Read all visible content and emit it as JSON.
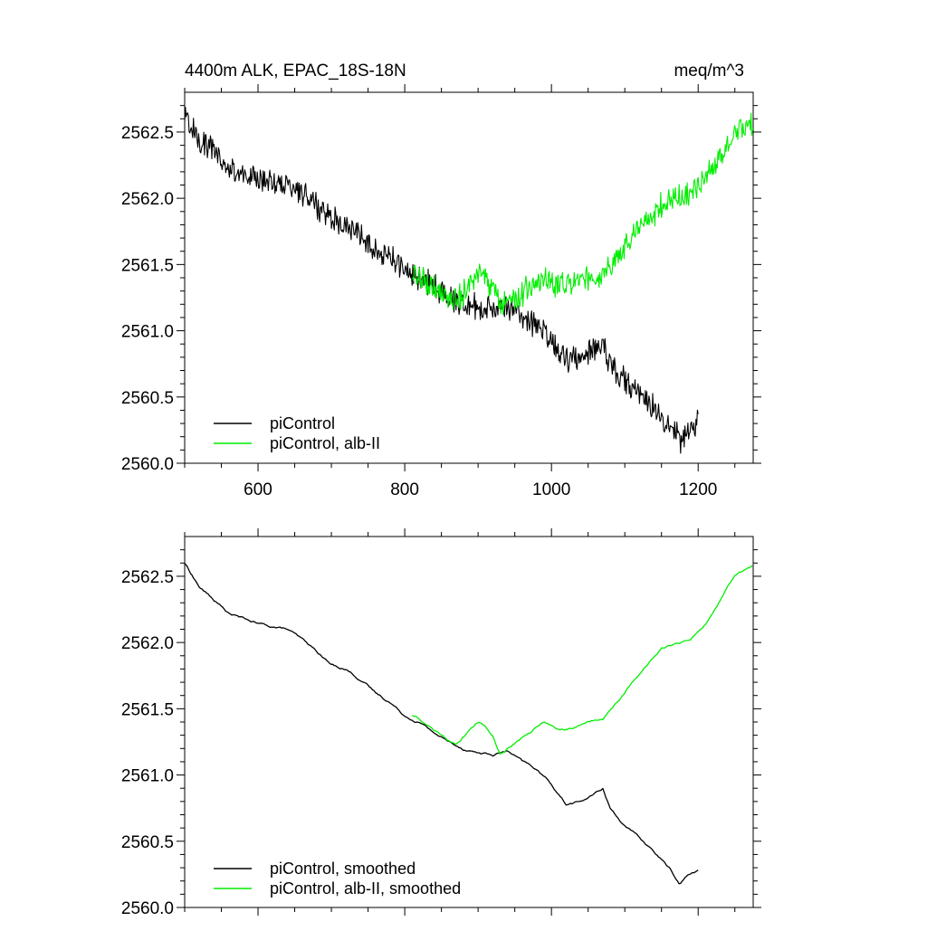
{
  "figure": {
    "title_left": "4400m ALK, EPAC_18S-18N",
    "title_right": "meq/m^3"
  },
  "chart_data": [
    {
      "type": "line",
      "panel": "top",
      "title": "4400m ALK, EPAC_18S-18N",
      "units": "meq/m^3",
      "xlim": [
        500,
        1275
      ],
      "ylim": [
        2560.0,
        2562.8
      ],
      "xticks": [
        600,
        800,
        1000,
        1200
      ],
      "xtick_labels": [
        "600",
        "800",
        "1000",
        "1200"
      ],
      "yticks": [
        2560.0,
        2560.5,
        2561.0,
        2561.5,
        2562.0,
        2562.5
      ],
      "ytick_labels": [
        "2560.0",
        "2560.5",
        "2561.0",
        "2561.5",
        "2562.0",
        "2562.5"
      ],
      "legend_position": "bottom-left",
      "series": [
        {
          "name": "piControl",
          "color": "#000000",
          "noisy": true,
          "x": [
            500,
            520,
            540,
            560,
            580,
            600,
            620,
            640,
            660,
            680,
            700,
            720,
            740,
            760,
            780,
            800,
            820,
            840,
            860,
            880,
            900,
            920,
            940,
            960,
            980,
            1000,
            1020,
            1040,
            1060,
            1070,
            1080,
            1100,
            1120,
            1140,
            1160,
            1175,
            1185,
            1200
          ],
          "values": [
            2562.62,
            2562.45,
            2562.35,
            2562.22,
            2562.18,
            2562.15,
            2562.12,
            2562.1,
            2562.05,
            2561.95,
            2561.85,
            2561.8,
            2561.72,
            2561.62,
            2561.55,
            2561.45,
            2561.4,
            2561.33,
            2561.25,
            2561.2,
            2561.18,
            2561.15,
            2561.2,
            2561.1,
            2561.05,
            2560.92,
            2560.78,
            2560.82,
            2560.88,
            2560.9,
            2560.75,
            2560.62,
            2560.52,
            2560.42,
            2560.3,
            2560.18,
            2560.25,
            2560.3
          ]
        },
        {
          "name": "piControl, alb-II",
          "color": "#00ee00",
          "noisy": true,
          "x": [
            810,
            830,
            850,
            870,
            890,
            900,
            910,
            920,
            930,
            950,
            970,
            990,
            1010,
            1030,
            1050,
            1070,
            1090,
            1110,
            1130,
            1150,
            1170,
            1190,
            1210,
            1230,
            1250,
            1275
          ],
          "values": [
            2561.45,
            2561.38,
            2561.3,
            2561.22,
            2561.35,
            2561.42,
            2561.38,
            2561.3,
            2561.18,
            2561.25,
            2561.32,
            2561.4,
            2561.33,
            2561.36,
            2561.4,
            2561.42,
            2561.55,
            2561.7,
            2561.82,
            2561.95,
            2562.0,
            2562.02,
            2562.15,
            2562.32,
            2562.5,
            2562.58
          ]
        }
      ]
    },
    {
      "type": "line",
      "panel": "bottom",
      "xlim": [
        500,
        1275
      ],
      "ylim": [
        2560.0,
        2562.8
      ],
      "xticks": [
        600,
        800,
        1000,
        1200
      ],
      "yticks": [
        2560.0,
        2560.5,
        2561.0,
        2561.5,
        2562.0,
        2562.5
      ],
      "ytick_labels": [
        "2560.0",
        "2560.5",
        "2561.0",
        "2561.5",
        "2562.0",
        "2562.5"
      ],
      "legend_position": "bottom-left",
      "series": [
        {
          "name": "piControl, smoothed",
          "color": "#000000",
          "noisy": false,
          "x": [
            500,
            520,
            540,
            560,
            580,
            600,
            620,
            640,
            660,
            680,
            700,
            720,
            740,
            760,
            780,
            800,
            820,
            840,
            860,
            880,
            900,
            920,
            940,
            960,
            980,
            1000,
            1020,
            1040,
            1060,
            1070,
            1080,
            1100,
            1120,
            1140,
            1160,
            1175,
            1185,
            1200
          ],
          "values": [
            2562.6,
            2562.42,
            2562.32,
            2562.22,
            2562.18,
            2562.14,
            2562.12,
            2562.1,
            2562.02,
            2561.93,
            2561.83,
            2561.8,
            2561.72,
            2561.62,
            2561.55,
            2561.45,
            2561.4,
            2561.32,
            2561.25,
            2561.2,
            2561.17,
            2561.15,
            2561.18,
            2561.1,
            2561.04,
            2560.93,
            2560.78,
            2560.8,
            2560.86,
            2560.9,
            2560.75,
            2560.62,
            2560.52,
            2560.42,
            2560.3,
            2560.18,
            2560.24,
            2560.28
          ]
        },
        {
          "name": "piControl, alb-II, smoothed",
          "color": "#00ee00",
          "noisy": false,
          "x": [
            810,
            830,
            850,
            870,
            890,
            900,
            910,
            920,
            930,
            950,
            970,
            990,
            1010,
            1030,
            1050,
            1070,
            1090,
            1110,
            1130,
            1150,
            1170,
            1190,
            1210,
            1230,
            1250,
            1275
          ],
          "values": [
            2561.45,
            2561.38,
            2561.3,
            2561.22,
            2561.35,
            2561.4,
            2561.38,
            2561.3,
            2561.16,
            2561.24,
            2561.32,
            2561.4,
            2561.33,
            2561.36,
            2561.4,
            2561.42,
            2561.55,
            2561.7,
            2561.82,
            2561.95,
            2562.0,
            2562.02,
            2562.15,
            2562.32,
            2562.5,
            2562.58
          ]
        }
      ]
    }
  ]
}
